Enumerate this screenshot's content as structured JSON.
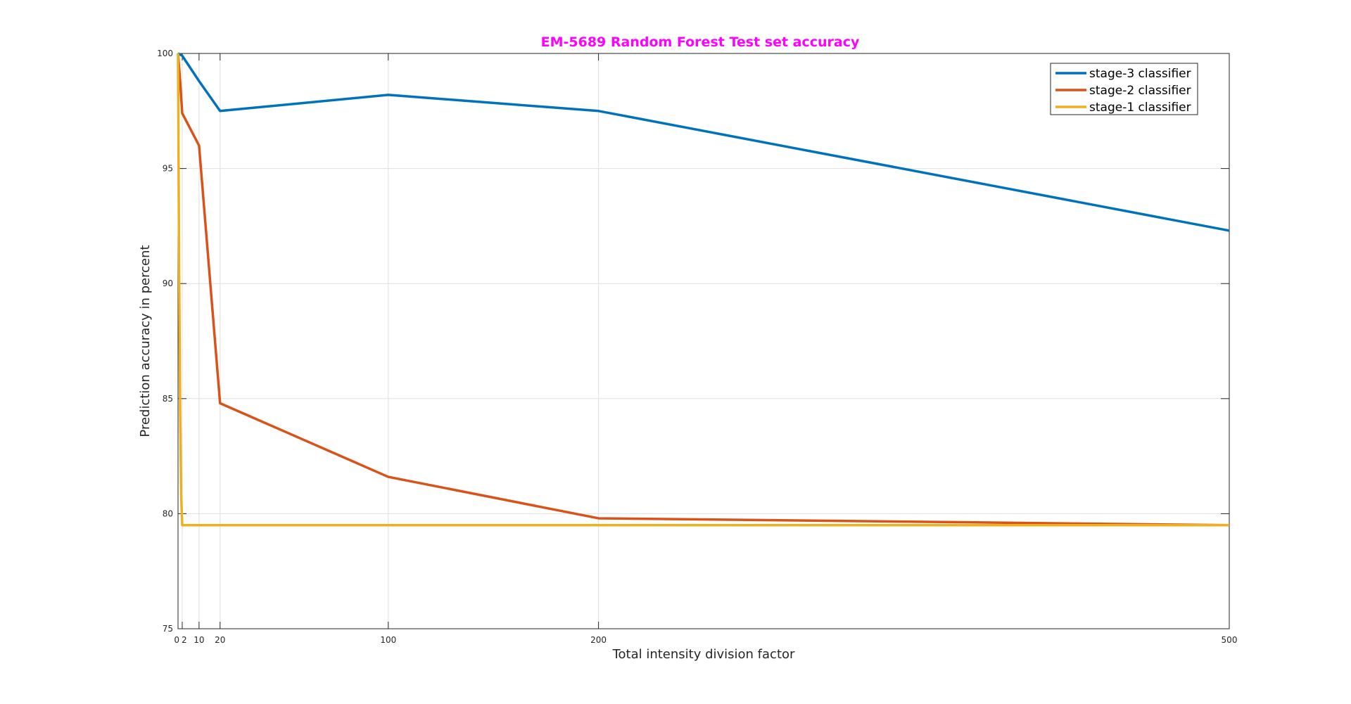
{
  "chart_data": {
    "type": "line",
    "title": "EM-5689 Random Forest Test set accuracy",
    "xlabel": "Total intensity division factor",
    "ylabel": "Prediction accuracy in percent",
    "xlim": [
      0,
      500
    ],
    "ylim": [
      75,
      100
    ],
    "xticks": [
      0,
      2,
      10,
      20,
      100,
      200,
      500
    ],
    "xtick_labels": [
      "0",
      "2",
      "10",
      "20",
      "100",
      "200",
      "500"
    ],
    "yticks": [
      75,
      80,
      85,
      90,
      95,
      100
    ],
    "ytick_labels": [
      "75",
      "80",
      "85",
      "90",
      "95",
      "100"
    ],
    "grid": true,
    "legend_position": "top-right",
    "series": [
      {
        "name": "stage-3 classifier",
        "color": "#0072BD",
        "x": [
          0,
          2,
          10,
          20,
          100,
          200,
          500
        ],
        "y": [
          100,
          99.9,
          98.8,
          97.5,
          98.2,
          97.5,
          92.3
        ]
      },
      {
        "name": "stage-2 classifier",
        "color": "#D95319",
        "x": [
          0,
          1,
          2,
          10,
          20,
          100,
          200,
          500
        ],
        "y": [
          100,
          98.8,
          97.4,
          96.0,
          84.8,
          81.6,
          79.8,
          79.5
        ]
      },
      {
        "name": "stage-1 classifier",
        "color": "#EDB120",
        "x": [
          0,
          0.5,
          1,
          1.5,
          2,
          500
        ],
        "y": [
          100,
          91.0,
          84.5,
          80.8,
          79.5,
          79.5
        ]
      }
    ]
  }
}
